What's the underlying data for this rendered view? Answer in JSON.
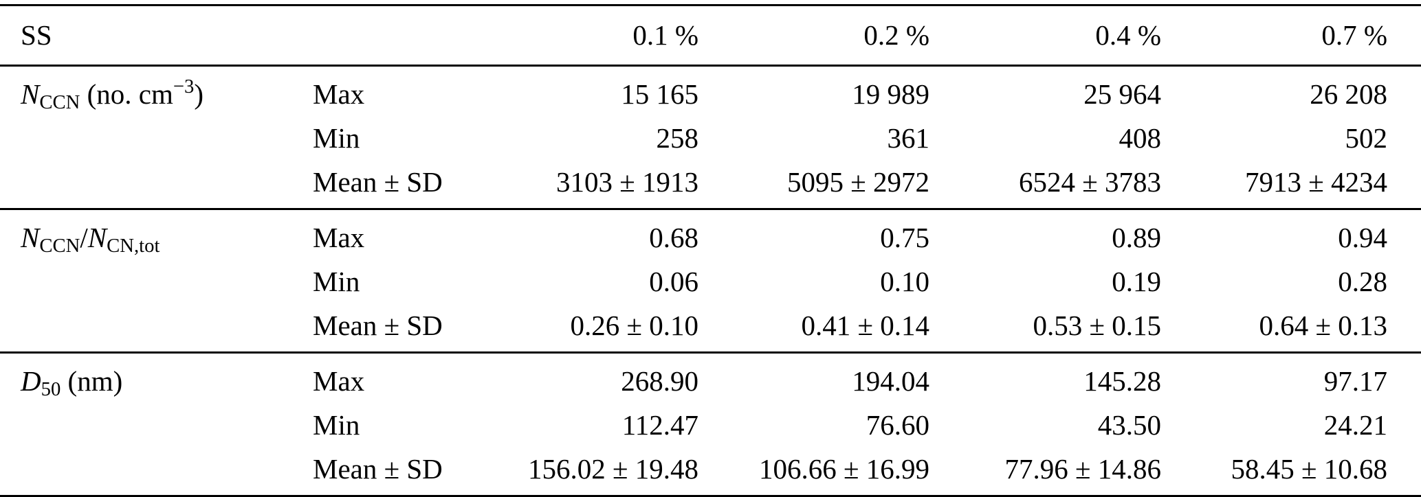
{
  "page": {
    "background": "#ffffff",
    "text_color": "#000000",
    "rule_color": "#000000"
  },
  "table": {
    "header": {
      "row_label": "SS",
      "columns": [
        "0.1 %",
        "0.2 %",
        "0.4 %",
        "0.7 %"
      ]
    },
    "groups": [
      {
        "id": "nccn-concentration",
        "label_parts": [
          {
            "t": "N",
            "s": "i"
          },
          {
            "t": "CCN",
            "s": "sub"
          },
          {
            "t": " (no. cm",
            "s": "n"
          },
          {
            "t": "−3",
            "s": "sup"
          },
          {
            "t": ")",
            "s": "n"
          }
        ],
        "rows": [
          {
            "stat": "Max",
            "values": [
              "15 165",
              "19 989",
              "25 964",
              "26 208"
            ]
          },
          {
            "stat": "Min",
            "values": [
              "258",
              "361",
              "408",
              "502"
            ]
          },
          {
            "stat": "Mean ± SD",
            "values": [
              "3103 ± 1913",
              "5095 ± 2972",
              "6524 ± 3783",
              "7913 ± 4234"
            ]
          }
        ]
      },
      {
        "id": "activation-ratio",
        "label_parts": [
          {
            "t": "N",
            "s": "i"
          },
          {
            "t": "CCN",
            "s": "sub"
          },
          {
            "t": "/",
            "s": "n"
          },
          {
            "t": "N",
            "s": "i"
          },
          {
            "t": "CN,tot",
            "s": "sub"
          }
        ],
        "rows": [
          {
            "stat": "Max",
            "values": [
              "0.68",
              "0.75",
              "0.89",
              "0.94"
            ]
          },
          {
            "stat": "Min",
            "values": [
              "0.06",
              "0.10",
              "0.19",
              "0.28"
            ]
          },
          {
            "stat": "Mean ± SD",
            "values": [
              "0.26 ± 0.10",
              "0.41 ± 0.14",
              "0.53 ± 0.15",
              "0.64 ± 0.13"
            ]
          }
        ]
      },
      {
        "id": "d50-diameter",
        "label_parts": [
          {
            "t": "D",
            "s": "i"
          },
          {
            "t": "50",
            "s": "sub"
          },
          {
            "t": " (nm)",
            "s": "n"
          }
        ],
        "rows": [
          {
            "stat": "Max",
            "values": [
              "268.90",
              "194.04",
              "145.28",
              "97.17"
            ]
          },
          {
            "stat": "Min",
            "values": [
              "112.47",
              "76.60",
              "43.50",
              "24.21"
            ]
          },
          {
            "stat": "Mean ± SD",
            "values": [
              "156.02 ± 19.48",
              "106.66 ± 16.99",
              "77.96 ± 14.86",
              "58.45 ± 10.68"
            ]
          }
        ]
      }
    ]
  }
}
